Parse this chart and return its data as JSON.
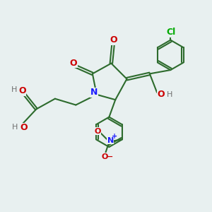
{
  "background_color": "#e8f0f0",
  "bond_color": "#2d6b2d",
  "bond_width": 1.5,
  "atoms": {
    "N": "#1a1aff",
    "O": "#cc0000",
    "H_gray": "#707070",
    "Cl": "#00aa00"
  },
  "layout": {
    "xlim": [
      0,
      10
    ],
    "ylim": [
      0,
      10
    ],
    "figsize": [
      3.0,
      3.0
    ],
    "dpi": 100
  }
}
